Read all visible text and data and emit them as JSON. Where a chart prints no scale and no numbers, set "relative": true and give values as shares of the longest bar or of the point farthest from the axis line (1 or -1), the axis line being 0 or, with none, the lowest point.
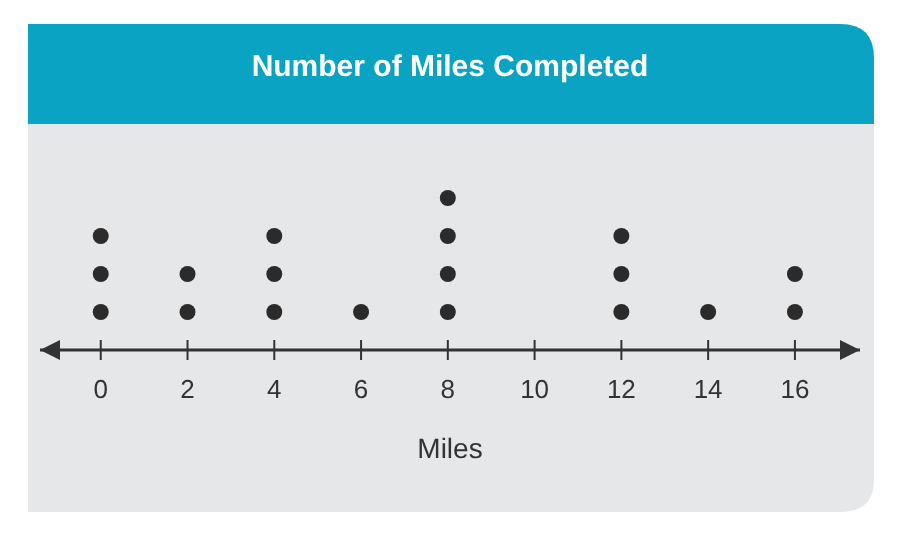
{
  "chart_data": {
    "type": "scatter",
    "title": "Number of Miles Completed",
    "xlabel": "Miles",
    "xlim": [
      -1.4,
      17.5
    ],
    "xticks": [
      0,
      2,
      4,
      6,
      8,
      10,
      12,
      14,
      16
    ],
    "relative": true,
    "tick_labels": "x",
    "marker": "circle",
    "grid": false,
    "series": [
      {
        "color": "#2b2b2b",
        "x": [
          0,
          0,
          0,
          2,
          2,
          4,
          4,
          4,
          6,
          8,
          8,
          8,
          8,
          12,
          12,
          12,
          14,
          16,
          16
        ],
        "values": [
          0.25,
          0.5,
          0.75,
          0.25,
          0.5,
          0.25,
          0.5,
          0.75,
          0.25,
          0.25,
          0.5,
          0.75,
          1,
          0.25,
          0.5,
          0.75,
          0.25,
          0.25,
          0.5
        ]
      }
    ]
  }
}
